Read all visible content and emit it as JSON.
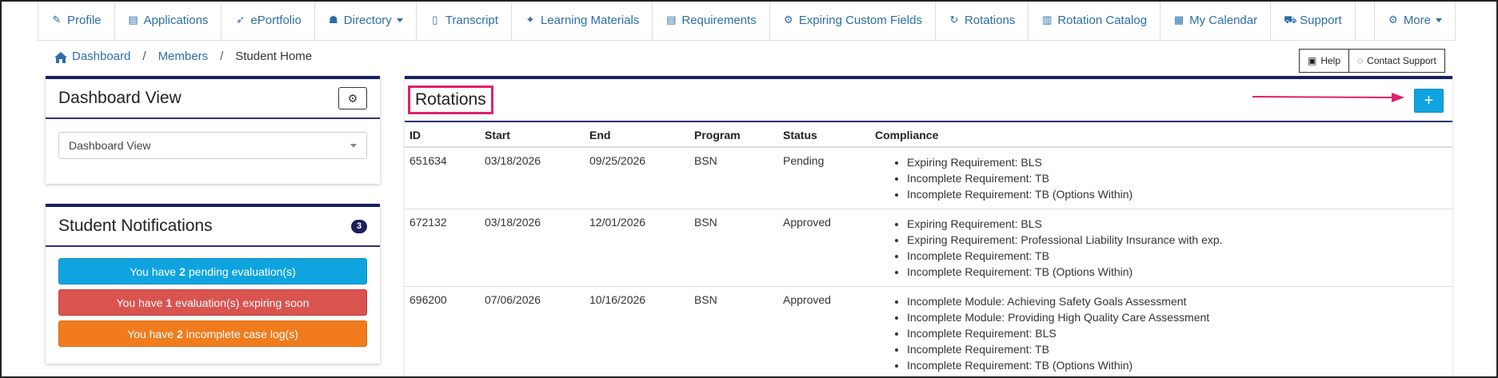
{
  "nav": {
    "items": [
      {
        "label": "Profile",
        "icon": "pencil-icon",
        "glyph": "✎"
      },
      {
        "label": "Applications",
        "icon": "id-card-icon",
        "glyph": "▤"
      },
      {
        "label": "ePortfolio",
        "icon": "rocket-icon",
        "glyph": "➶"
      },
      {
        "label": "Directory",
        "icon": "users-icon",
        "glyph": "☗"
      },
      {
        "label": "Transcript",
        "icon": "file-icon",
        "glyph": "▯"
      },
      {
        "label": "Learning Materials",
        "icon": "graduation-cap-icon",
        "glyph": "✦"
      },
      {
        "label": "Requirements",
        "icon": "list-icon",
        "glyph": "▤"
      },
      {
        "label": "Expiring Custom Fields",
        "icon": "cogs-icon",
        "glyph": "⚙"
      },
      {
        "label": "Rotations",
        "icon": "refresh-icon",
        "glyph": "↻"
      },
      {
        "label": "Rotation Catalog",
        "icon": "book-icon",
        "glyph": "▥"
      },
      {
        "label": "My Calendar",
        "icon": "calendar-icon",
        "glyph": "▦"
      },
      {
        "label": "Support",
        "icon": "truck-icon",
        "glyph": "⛟"
      }
    ],
    "more_label": "More"
  },
  "breadcrumb": {
    "dashboard": "Dashboard",
    "members": "Members",
    "current": "Student Home",
    "separator": "/"
  },
  "help": {
    "help_label": "Help",
    "contact_label": "Contact Support"
  },
  "dashboard_view": {
    "title": "Dashboard View",
    "select_value": "Dashboard View"
  },
  "notifications": {
    "title": "Student Notifications",
    "count": "3",
    "items": [
      {
        "pre": "You have",
        "num": "2",
        "post": "pending evaluation(s)"
      },
      {
        "pre": "You have",
        "num": "1",
        "post": "evaluation(s) expiring soon"
      },
      {
        "pre": "You have",
        "num": "2",
        "post": "incomplete case log(s)"
      }
    ]
  },
  "rotations": {
    "title": "Rotations",
    "add_label": "+",
    "headers": {
      "id": "ID",
      "start": "Start",
      "end": "End",
      "program": "Program",
      "status": "Status",
      "compliance": "Compliance"
    },
    "rows": [
      {
        "id": "651634",
        "start": "03/18/2026",
        "end": "09/25/2026",
        "program": "BSN",
        "status": "Pending",
        "compliance": [
          "Expiring Requirement: BLS",
          "Incomplete Requirement: TB",
          "Incomplete Requirement: TB (Options Within)"
        ]
      },
      {
        "id": "672132",
        "start": "03/18/2026",
        "end": "12/01/2026",
        "program": "BSN",
        "status": "Approved",
        "compliance": [
          "Expiring Requirement: BLS",
          "Expiring Requirement: Professional Liability Insurance with exp.",
          "Incomplete Requirement: TB",
          "Incomplete Requirement: TB (Options Within)"
        ]
      },
      {
        "id": "696200",
        "start": "07/06/2026",
        "end": "10/16/2026",
        "program": "BSN",
        "status": "Approved",
        "compliance": [
          "Incomplete Module: Achieving Safety Goals Assessment",
          "Incomplete Module: Providing High Quality Care Assessment",
          "Incomplete Requirement: BLS",
          "Incomplete Requirement: TB",
          "Incomplete Requirement: TB (Options Within)"
        ]
      }
    ]
  },
  "colors": {
    "link": "#2a6fa8",
    "panel_border": "#1a1f5e",
    "primary_button": "#0fa4e0",
    "danger": "#d9534f",
    "warning": "#f07c1e",
    "highlight": "#e2206a"
  }
}
